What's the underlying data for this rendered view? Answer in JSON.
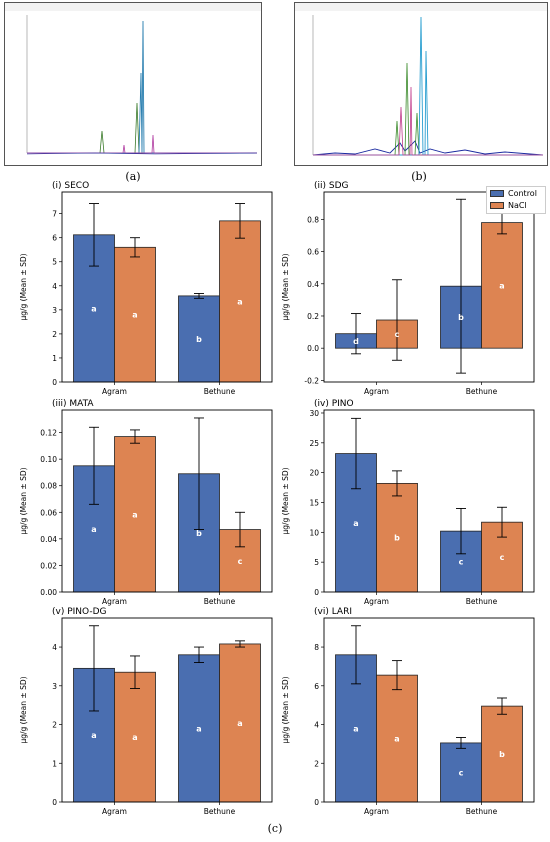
{
  "panel_labels": {
    "a": "(a)",
    "b": "(b)",
    "c": "(c)"
  },
  "legend": {
    "control": "Control",
    "nacl": "NaCl"
  },
  "colors": {
    "control": "#4a6eb0",
    "nacl": "#dd8452"
  },
  "chart_data": [
    {
      "type": "bar",
      "title": "(i) SECO",
      "ylabel": "µg/g (Mean ± SD)",
      "categories": [
        "Agram",
        "Bethune"
      ],
      "yticks": [
        0,
        1,
        2,
        3,
        4,
        5,
        6,
        7
      ],
      "ylim": [
        0,
        7.9
      ],
      "series": [
        {
          "name": "Control",
          "values": [
            6.12,
            3.58
          ],
          "errors": [
            1.3,
            0.1
          ],
          "letters": [
            "a",
            "b"
          ]
        },
        {
          "name": "NaCl",
          "values": [
            5.6,
            6.7
          ],
          "errors": [
            0.4,
            0.72
          ],
          "letters": [
            "a",
            "a"
          ]
        }
      ]
    },
    {
      "type": "bar",
      "title": "(ii) SDG",
      "ylabel": "µg/g (Mean ± SD)",
      "categories": [
        "Agram",
        "Bethune"
      ],
      "yticks": [
        -0.2,
        0.0,
        0.2,
        0.4,
        0.6,
        0.8
      ],
      "ylim": [
        -0.21,
        0.97
      ],
      "series": [
        {
          "name": "Control",
          "values": [
            0.09,
            0.385
          ],
          "errors": [
            0.125,
            0.54
          ],
          "letters": [
            "d",
            "b"
          ]
        },
        {
          "name": "NaCl",
          "values": [
            0.175,
            0.78
          ],
          "errors": [
            0.25,
            0.07
          ],
          "letters": [
            "c",
            "a"
          ]
        }
      ]
    },
    {
      "type": "bar",
      "title": "(iii) MATA",
      "ylabel": "µg/g (Mean ± SD)",
      "categories": [
        "Agram",
        "Bethune"
      ],
      "yticks": [
        0.0,
        0.02,
        0.04,
        0.06,
        0.08,
        0.1,
        0.12
      ],
      "ylim": [
        0,
        0.137
      ],
      "series": [
        {
          "name": "Control",
          "values": [
            0.095,
            0.089
          ],
          "errors": [
            0.029,
            0.042
          ],
          "letters": [
            "a",
            "b"
          ]
        },
        {
          "name": "NaCl",
          "values": [
            0.117,
            0.047
          ],
          "errors": [
            0.005,
            0.013
          ],
          "letters": [
            "a",
            "c"
          ]
        }
      ]
    },
    {
      "type": "bar",
      "title": "(iv) PINO",
      "ylabel": "µg/g (Mean ± SD)",
      "categories": [
        "Agram",
        "Bethune"
      ],
      "yticks": [
        0,
        5,
        10,
        15,
        20,
        25,
        30
      ],
      "ylim": [
        0,
        30.5
      ],
      "series": [
        {
          "name": "Control",
          "values": [
            23.2,
            10.2
          ],
          "errors": [
            5.9,
            3.8
          ],
          "letters": [
            "a",
            "c"
          ]
        },
        {
          "name": "NaCl",
          "values": [
            18.2,
            11.7
          ],
          "errors": [
            2.1,
            2.5
          ],
          "letters": [
            "b",
            "c"
          ]
        }
      ]
    },
    {
      "type": "bar",
      "title": "(v) PINO-DG",
      "ylabel": "µg/g (Mean ± SD)",
      "categories": [
        "Agram",
        "Bethune"
      ],
      "yticks": [
        0,
        1,
        2,
        3,
        4
      ],
      "ylim": [
        0,
        4.75
      ],
      "series": [
        {
          "name": "Control",
          "values": [
            3.45,
            3.8
          ],
          "errors": [
            1.1,
            0.2
          ],
          "letters": [
            "a",
            "a"
          ]
        },
        {
          "name": "NaCl",
          "values": [
            3.35,
            4.08
          ],
          "errors": [
            0.42,
            0.08
          ],
          "letters": [
            "a",
            "a"
          ]
        }
      ]
    },
    {
      "type": "bar",
      "title": "(vi) LARI",
      "ylabel": "µg/g (Mean ± SD)",
      "categories": [
        "Agram",
        "Bethune"
      ],
      "yticks": [
        0,
        2,
        4,
        6,
        8
      ],
      "ylim": [
        0,
        9.5
      ],
      "series": [
        {
          "name": "Control",
          "values": [
            7.6,
            3.05
          ],
          "errors": [
            1.5,
            0.28
          ],
          "letters": [
            "a",
            "c"
          ]
        },
        {
          "name": "NaCl",
          "values": [
            6.55,
            4.95
          ],
          "errors": [
            0.75,
            0.42
          ],
          "letters": [
            "a",
            "b"
          ]
        }
      ]
    }
  ]
}
